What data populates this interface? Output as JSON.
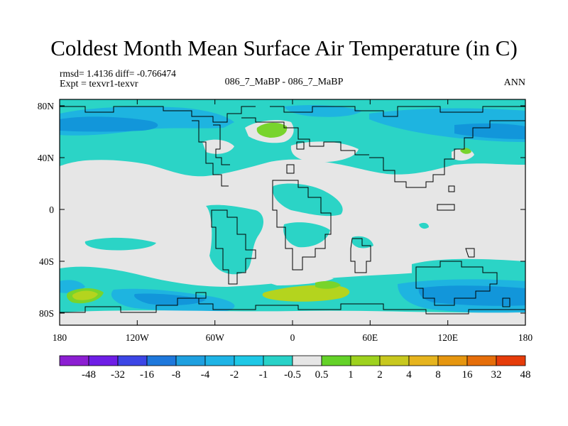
{
  "title": "Coldest Month Mean Surface Air Temperature (in C)",
  "stats_text": "rmsd= 1.4136 diff= -0.766474",
  "expt_text": "Expt = texvr1-texvr",
  "center_label": "086_7_MaBP - 086_7_MaBP",
  "period": "ANN",
  "axes": {
    "x_ticks": [
      "180",
      "120W",
      "60W",
      "0",
      "60E",
      "120E",
      "180"
    ],
    "y_ticks": [
      "80N",
      "40N",
      "0",
      "40S",
      "80S"
    ]
  },
  "colors": {
    "neutral": "#e6e6e6",
    "cyan_main": "#2bd4c6",
    "cyan_light": "#48e0c8",
    "blue_med": "#1eb4e0",
    "blue_dark": "#1296da",
    "green": "#78d42c",
    "yellow_green": "#b4d41e"
  },
  "colorbar": {
    "colors": [
      "#8c1ed2",
      "#6e1ee6",
      "#3c46e6",
      "#1e78dc",
      "#1ea0e0",
      "#1eb4e6",
      "#1ec8e6",
      "#28d2c8",
      "#e6e6e6",
      "#64d228",
      "#9ed21e",
      "#c8c81e",
      "#e6b41e",
      "#e6960f",
      "#e66e0a",
      "#e63c0a"
    ],
    "labels": [
      "-48",
      "-32",
      "-16",
      "-8",
      "-4",
      "-2",
      "-1",
      "-0.5",
      "0.5",
      "1",
      "2",
      "4",
      "8",
      "16",
      "32",
      "48"
    ]
  }
}
